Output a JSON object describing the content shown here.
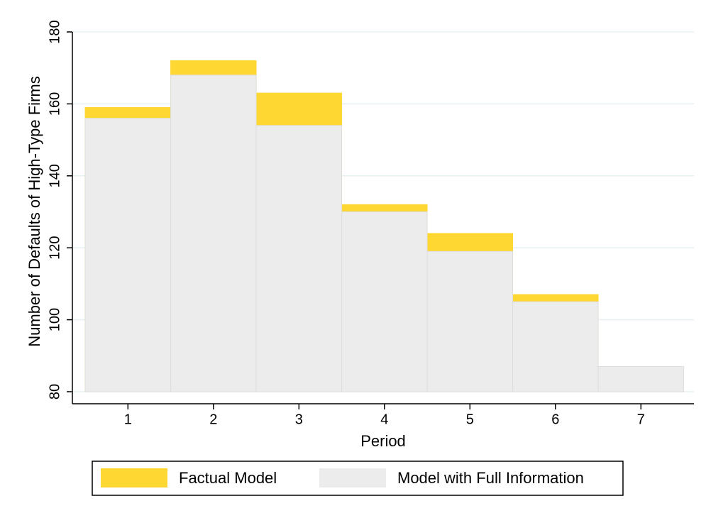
{
  "chart_data": {
    "type": "bar",
    "x_label": "Period",
    "y_label": "Number of Defaults of High-Type Firms",
    "x": [
      1,
      2,
      3,
      4,
      5,
      6,
      7
    ],
    "series": [
      {
        "name": "Factual Model",
        "color": "#ffd732",
        "values": [
          159,
          172,
          163,
          132,
          124,
          107,
          87
        ]
      },
      {
        "name": "Model with Full Information",
        "color": "#ececec",
        "values": [
          156,
          168,
          154,
          130,
          119,
          105,
          87
        ]
      }
    ],
    "xlim": [
      0.35,
      7.62
    ],
    "xticks": [
      1,
      2,
      3,
      4,
      5,
      6,
      7
    ],
    "ylim": [
      80,
      180
    ],
    "yticks": [
      80,
      100,
      120,
      140,
      160,
      180
    ],
    "grid": true
  }
}
